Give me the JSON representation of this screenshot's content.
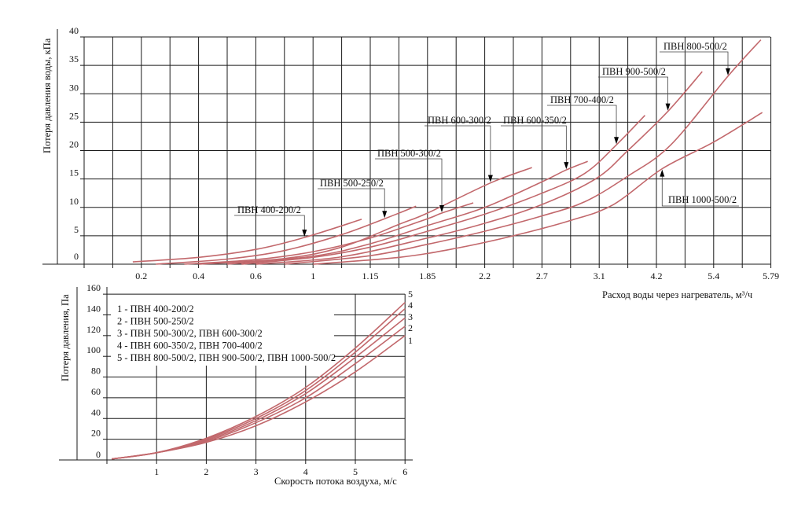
{
  "chart_data": [
    {
      "type": "line",
      "title": "",
      "xlabel": "Расход воды через нагреватель, м³/ч",
      "ylabel": "Потеря давления воды, кПа",
      "x_scale": "categorical ticks at every second gridline (positions 2,4,...,24 of 24 grid cells)",
      "x_tick_labels": [
        "0.2",
        "0.4",
        "0.6",
        "1",
        "1.15",
        "1.85",
        "2.2",
        "2.7",
        "3.1",
        "4.2",
        "5.4",
        "5.79"
      ],
      "x_tick_positions": [
        2,
        4,
        6,
        8,
        10,
        12,
        14,
        16,
        18,
        20,
        22,
        24
      ],
      "xlim": [
        0,
        24
      ],
      "y_tick_labels": [
        "0",
        "5",
        "10",
        "15",
        "20",
        "25",
        "30",
        "35",
        "40"
      ],
      "y_ticks": [
        0,
        5,
        10,
        15,
        20,
        25,
        30,
        35,
        40
      ],
      "ylim": [
        0,
        40
      ],
      "grid": true,
      "series": [
        {
          "name": "ПВН 400-200/2",
          "points": [
            [
              1.7,
              0.4
            ],
            [
              4,
              1.2
            ],
            [
              6,
              2.6
            ],
            [
              7.7,
              4.7
            ],
            [
              9.7,
              7.9
            ]
          ],
          "arrow_at": [
            7.7,
            4.7
          ]
        },
        {
          "name": "ПВН 500-250/2",
          "points": [
            [
              2.5,
              0
            ],
            [
              5,
              0.9
            ],
            [
              7,
              2.4
            ],
            [
              9,
              5.2
            ],
            [
              10.5,
              8.0
            ],
            [
              11.6,
              10.2
            ]
          ],
          "arrow_at": [
            10.5,
            8.0
          ]
        },
        {
          "name": "ПВН 500-300/2",
          "points": [
            [
              3.5,
              0
            ],
            [
              6,
              0.8
            ],
            [
              8,
              2.2
            ],
            [
              10,
              4.6
            ],
            [
              12,
              8.0
            ],
            [
              12.5,
              9.0
            ],
            [
              13.6,
              10.8
            ]
          ],
          "arrow_at": [
            12.5,
            9.0
          ]
        },
        {
          "name": "ПВН 600-300/2",
          "points": [
            [
              4,
              0
            ],
            [
              7,
              1
            ],
            [
              9,
              3
            ],
            [
              11,
              7
            ],
            [
              12,
              9
            ],
            [
              14.2,
              14.3
            ],
            [
              15.65,
              17
            ]
          ],
          "arrow_at": [
            14.2,
            14.3
          ]
        },
        {
          "name": "ПВН 600-350/2",
          "points": [
            [
              5,
              0
            ],
            [
              8,
              1.4
            ],
            [
              10,
              3.6
            ],
            [
              12,
              6.8
            ],
            [
              14,
              10
            ],
            [
              16,
              14.5
            ],
            [
              16.85,
              16.6
            ],
            [
              17.6,
              18.1
            ]
          ],
          "arrow_at": [
            16.85,
            16.6
          ]
        },
        {
          "name": "ПВН 700-400/2",
          "points": [
            [
              5.5,
              0
            ],
            [
              8,
              1.2
            ],
            [
              10,
              3
            ],
            [
              12,
              5.8
            ],
            [
              14,
              8.8
            ],
            [
              16,
              12.5
            ],
            [
              17.5,
              16
            ],
            [
              18.6,
              21
            ],
            [
              19.6,
              26.2
            ]
          ],
          "arrow_at": [
            18.6,
            21
          ]
        },
        {
          "name": "ПВН 900-500/2",
          "points": [
            [
              6,
              0
            ],
            [
              9,
              1.3
            ],
            [
              12,
              4.6
            ],
            [
              14,
              7.2
            ],
            [
              16,
              10.5
            ],
            [
              17.9,
              15.1
            ],
            [
              19,
              20
            ],
            [
              20.4,
              26.9
            ],
            [
              21.6,
              33.9
            ]
          ],
          "arrow_at": [
            20.4,
            26.9
          ]
        },
        {
          "name": "ПВН 800-500/2",
          "points": [
            [
              7,
              0
            ],
            [
              10,
              1.5
            ],
            [
              12,
              3.5
            ],
            [
              14,
              5.8
            ],
            [
              16,
              8.5
            ],
            [
              17.5,
              11
            ],
            [
              19,
              15.5
            ],
            [
              20.5,
              21
            ],
            [
              22.5,
              33.1
            ],
            [
              23.65,
              39.5
            ]
          ],
          "arrow_at": [
            22.5,
            33.1
          ]
        },
        {
          "name": "ПВН 1000-500/2",
          "points": [
            [
              8,
              0
            ],
            [
              11,
              1.2
            ],
            [
              13,
              2.8
            ],
            [
              15,
              5
            ],
            [
              17,
              7.7
            ],
            [
              18.5,
              10.5
            ],
            [
              20.2,
              16.8
            ],
            [
              22,
              21.5
            ],
            [
              23.7,
              26.7
            ]
          ],
          "arrow_at": [
            20.2,
            16.8
          ]
        }
      ]
    },
    {
      "type": "line",
      "title": "",
      "xlabel": "Скорость потока воздуха, м/с",
      "ylabel": "Потеря давления, Па",
      "x_tick_labels": [
        "1",
        "2",
        "3",
        "4",
        "5",
        "6"
      ],
      "x_ticks": [
        1,
        2,
        3,
        4,
        5,
        6
      ],
      "xlim": [
        0,
        6
      ],
      "y_tick_labels": [
        "0",
        "20",
        "40",
        "60",
        "80",
        "100",
        "120",
        "140",
        "160"
      ],
      "y_ticks": [
        0,
        20,
        40,
        60,
        80,
        100,
        120,
        140,
        160
      ],
      "ylim": [
        0,
        160
      ],
      "grid": true,
      "legend": {
        "placement": "top-left",
        "entries": [
          "1 - ПВН 400-200/2",
          "2 - ПВН 500-250/2",
          "3 - ПВН 500-300/2, ПВН 600-300/2",
          "4 - ПВН 600-350/2, ПВН 700-400/2",
          "5 - ПВН 800-500/2, ПВН 900-500/2, ПВН 1000-500/2"
        ]
      },
      "series": [
        {
          "name": "1",
          "x": [
            0.1,
            1,
            2,
            3,
            4,
            5,
            6
          ],
          "y": [
            1,
            7,
            17,
            33,
            56,
            85,
            120
          ]
        },
        {
          "name": "2",
          "x": [
            0.1,
            1,
            2,
            3,
            4,
            5,
            6
          ],
          "y": [
            1,
            7,
            18,
            36,
            60,
            93,
            129
          ]
        },
        {
          "name": "3",
          "x": [
            0.1,
            1,
            2,
            3,
            4,
            5,
            6
          ],
          "y": [
            1,
            7,
            19,
            38,
            64,
            99,
            137
          ]
        },
        {
          "name": "4",
          "x": [
            0.1,
            1,
            2,
            3,
            4,
            5,
            6
          ],
          "y": [
            1,
            7,
            20,
            40,
            67,
            104,
            146
          ]
        },
        {
          "name": "5",
          "x": [
            0.1,
            1,
            2,
            3,
            4,
            5,
            6
          ],
          "y": [
            1,
            7,
            21,
            42,
            70,
            108,
            152
          ]
        }
      ]
    }
  ]
}
